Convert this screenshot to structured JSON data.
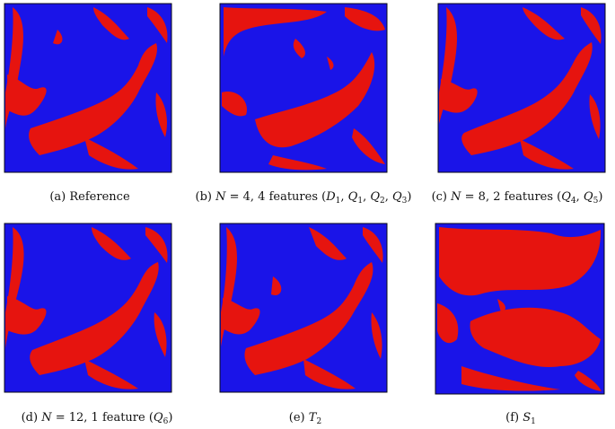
{
  "figure": {
    "colors": {
      "phase_a": "#1a14e8",
      "phase_b": "#e6140f",
      "outline": "#0a0a14"
    },
    "panels": [
      {
        "id": "a",
        "prefix": "(a)",
        "math": [],
        "text": "Reference"
      },
      {
        "id": "b",
        "prefix": "(b)",
        "math": [
          {
            "v": "N"
          },
          {
            "t": " = 4, 4 features ("
          },
          {
            "v": "D",
            "s": "1"
          },
          {
            "t": ", "
          },
          {
            "v": "Q",
            "s": "1"
          },
          {
            "t": ", "
          },
          {
            "v": "Q",
            "s": "2"
          },
          {
            "t": ", "
          },
          {
            "v": "Q",
            "s": "3"
          },
          {
            "t": ")"
          }
        ],
        "text": ""
      },
      {
        "id": "c",
        "prefix": "(c)",
        "math": [
          {
            "v": "N"
          },
          {
            "t": " = 8, 2 features ("
          },
          {
            "v": "Q",
            "s": "4"
          },
          {
            "t": ", "
          },
          {
            "v": "Q",
            "s": "5"
          },
          {
            "t": ")"
          }
        ],
        "text": ""
      },
      {
        "id": "d",
        "prefix": "(d)",
        "math": [
          {
            "v": "N"
          },
          {
            "t": " = 12, 1 feature ("
          },
          {
            "v": "Q",
            "s": "6"
          },
          {
            "t": ")"
          }
        ],
        "text": ""
      },
      {
        "id": "e",
        "prefix": "(e)",
        "math": [
          {
            "v": "T",
            "s": "2"
          }
        ],
        "text": ""
      },
      {
        "id": "f",
        "prefix": "(f)",
        "math": [
          {
            "v": "S",
            "s": "1"
          }
        ],
        "text": ""
      }
    ]
  }
}
